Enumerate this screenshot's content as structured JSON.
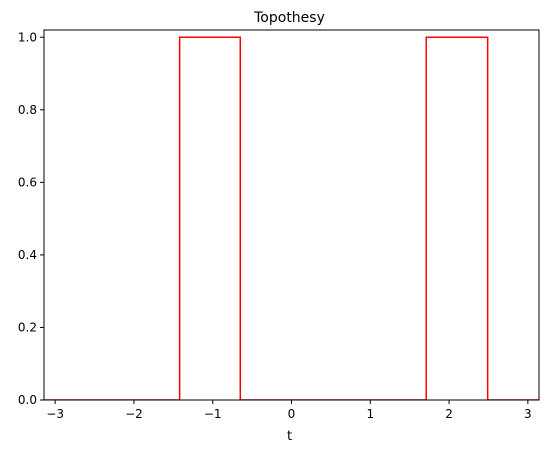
{
  "chart_data": {
    "type": "line",
    "title": "Topothesy",
    "xlabel": "t",
    "ylabel": "",
    "xlim": [
      -3.14159,
      3.14159
    ],
    "ylim": [
      0,
      1.02
    ],
    "grid": false,
    "legend": "none",
    "x_ticks": [
      -3,
      -2,
      -1,
      0,
      1,
      2,
      3
    ],
    "x_tick_labels": [
      "−3",
      "−2",
      "−1",
      "0",
      "1",
      "2",
      "3"
    ],
    "y_ticks": [
      0,
      0.2,
      0.4,
      0.6,
      0.8,
      1.0
    ],
    "y_tick_labels": [
      "0.0",
      "0.2",
      "0.4",
      "0.6",
      "0.8",
      "1.0"
    ],
    "series": [
      {
        "color": "#ff0000",
        "x": [
          -3.14159,
          -1.42,
          -1.42,
          -0.65,
          -0.65,
          1.71,
          1.71,
          2.49,
          2.49,
          3.14159
        ],
        "y": [
          0,
          0,
          1,
          1,
          0,
          0,
          1,
          1,
          0,
          0
        ]
      }
    ]
  }
}
